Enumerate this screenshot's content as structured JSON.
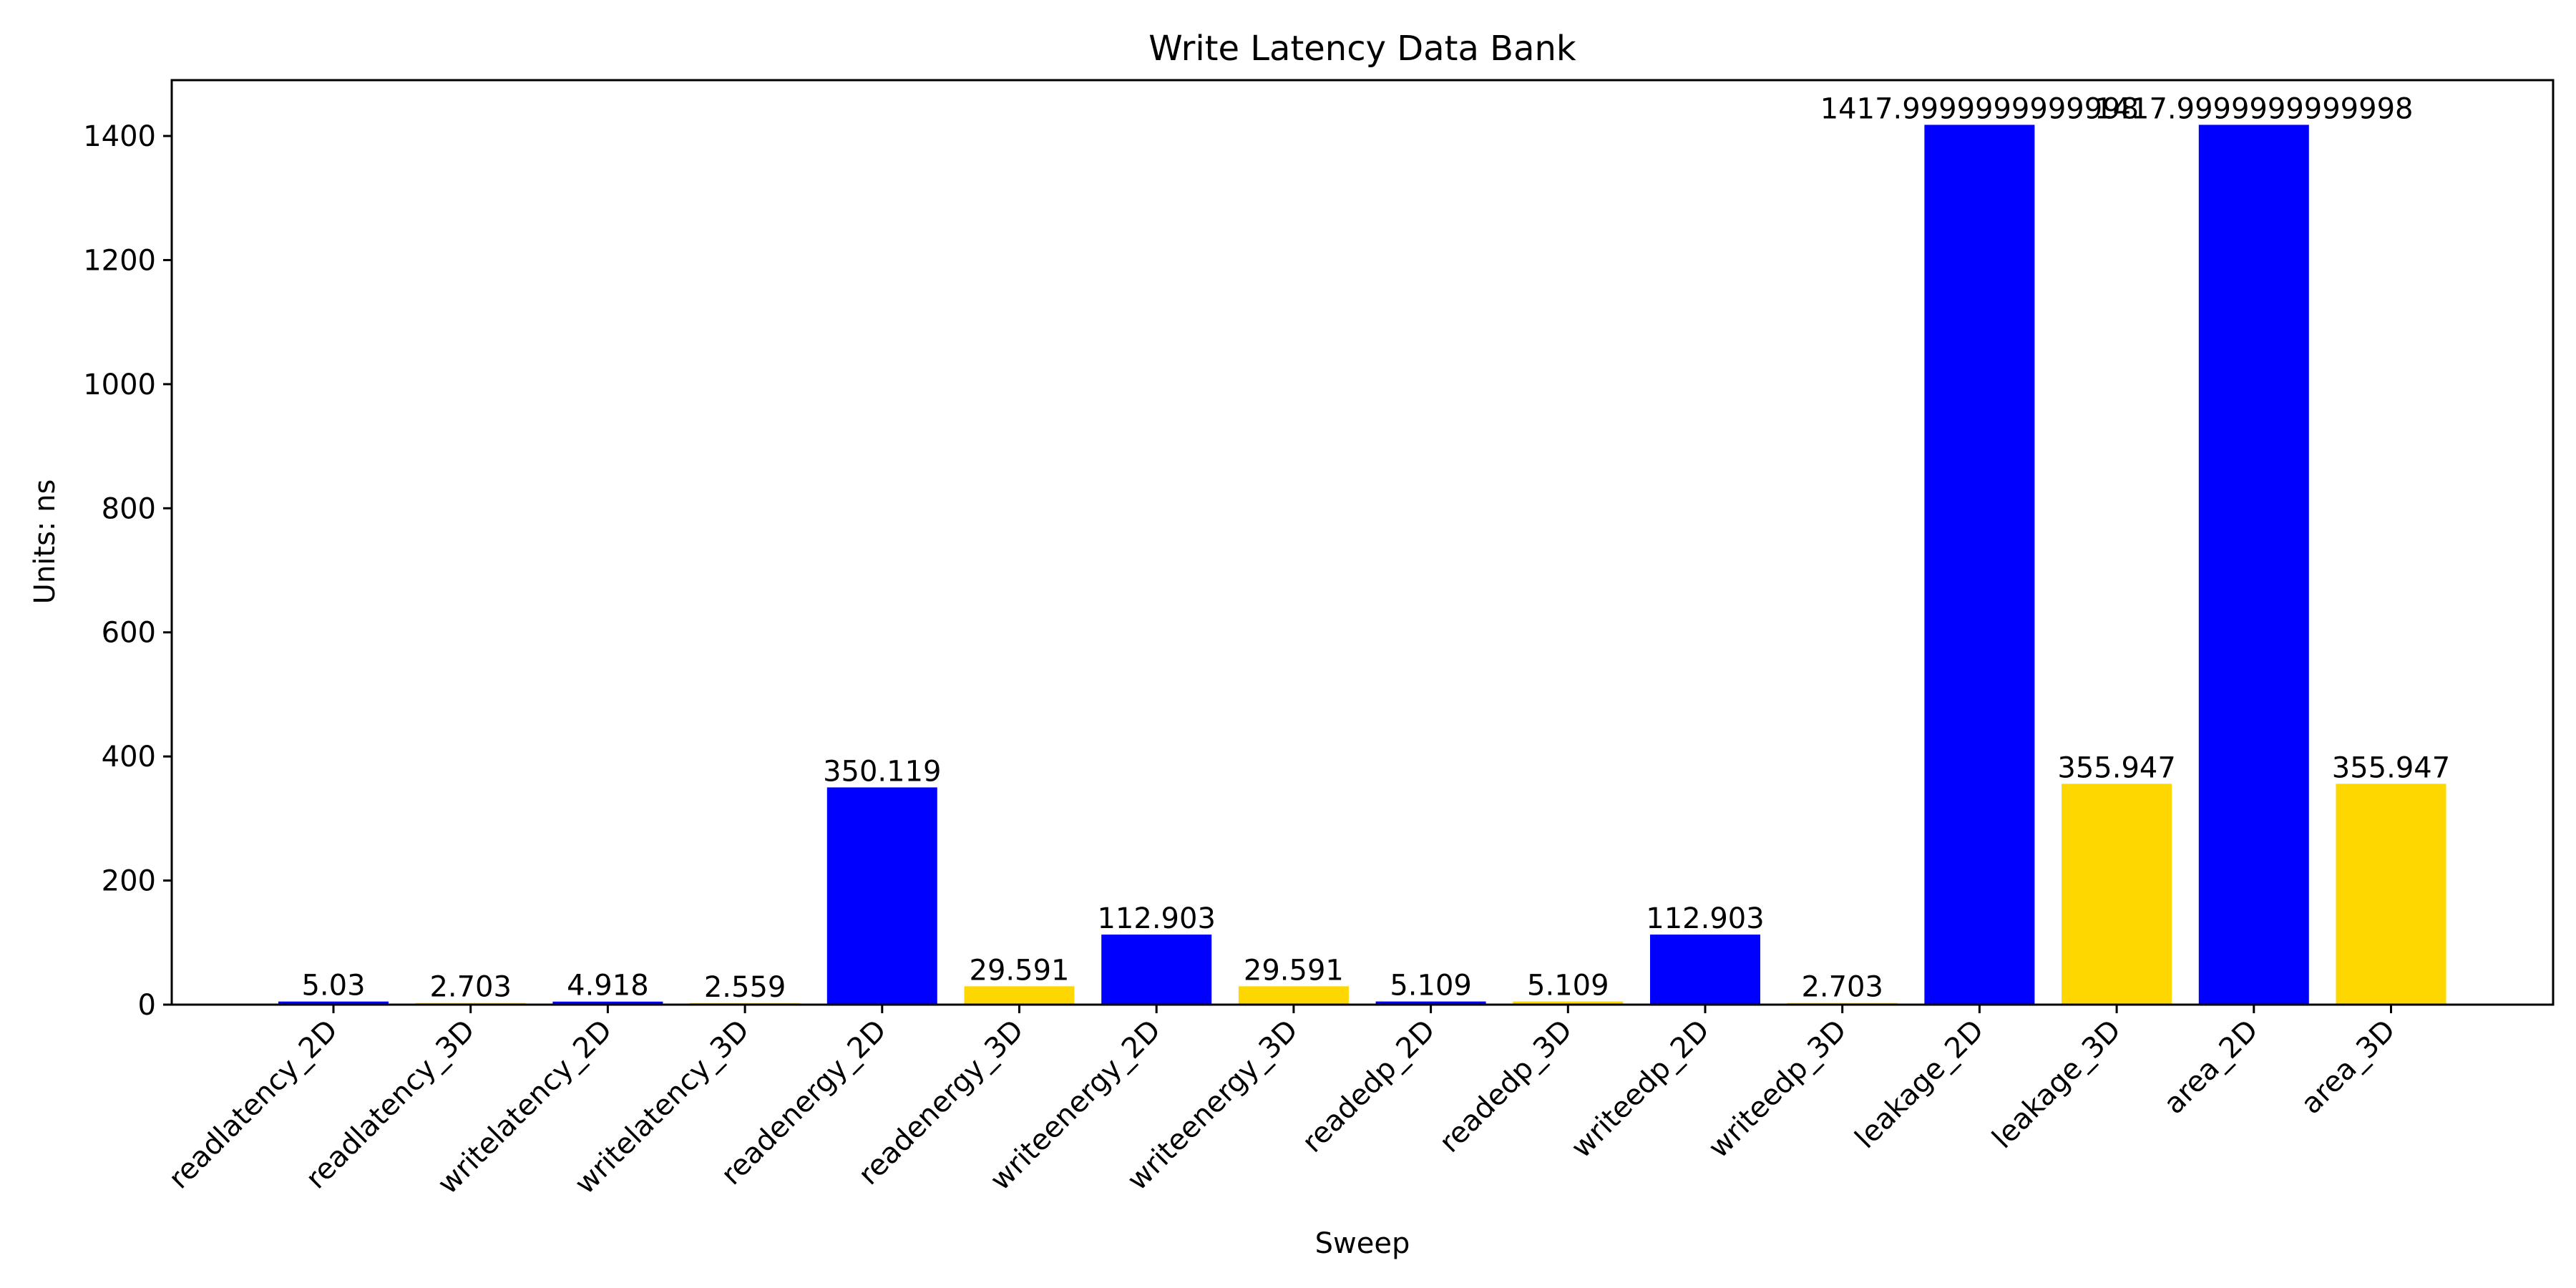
{
  "chart_data": {
    "type": "bar",
    "title": "Write Latency Data Bank",
    "xlabel": "Sweep",
    "ylabel": "Units: ns",
    "ylim": [
      0,
      1490
    ],
    "yticks": [
      0,
      200,
      400,
      600,
      800,
      1000,
      1200,
      1400
    ],
    "grid": false,
    "categories": [
      "readlatency_2D",
      "readlatency_3D",
      "writelatency_2D",
      "writelatency_3D",
      "readenergy_2D",
      "readenergy_3D",
      "writeenergy_2D",
      "writeenergy_3D",
      "readedp_2D",
      "readedp_3D",
      "writeedp_2D",
      "writeedp_3D",
      "leakage_2D",
      "leakage_3D",
      "area_2D",
      "area_3D"
    ],
    "values": [
      5.03,
      2.703,
      4.918,
      2.559,
      350.119,
      29.591,
      112.903,
      29.591,
      5.109,
      5.109,
      112.903,
      2.703,
      1417.9999999999998,
      355.947,
      1417.9999999999998,
      355.947
    ],
    "value_labels": [
      "5.03",
      "2.703",
      "4.918",
      "2.559",
      "350.119",
      "29.591",
      "112.903",
      "29.591",
      "5.109",
      "5.109",
      "112.903",
      "2.703",
      "1417.9999999999998",
      "355.947",
      "1417.9999999999998",
      "355.947"
    ],
    "colors": {
      "2D": "#0000ff",
      "3D": "#ffd700"
    }
  }
}
